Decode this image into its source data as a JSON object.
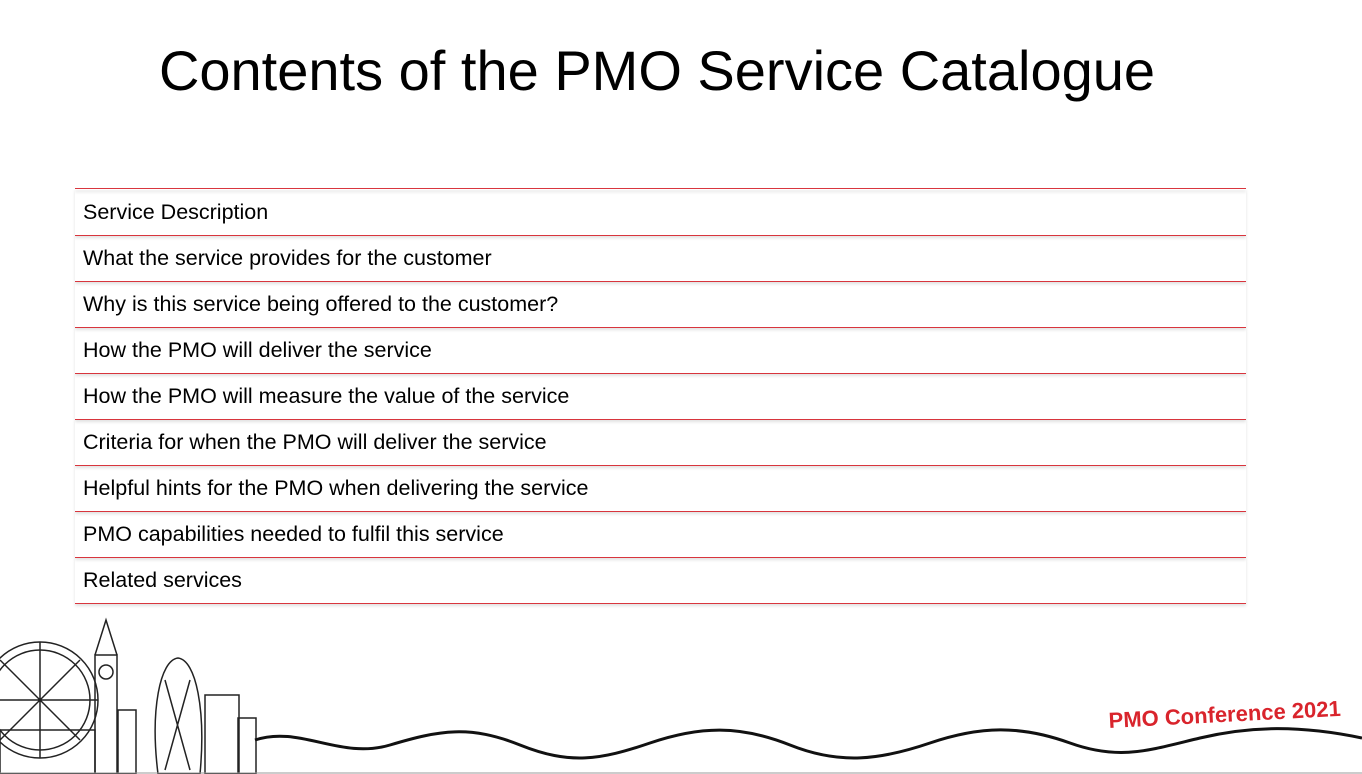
{
  "header": {
    "title": "Contents of the PMO Service Catalogue"
  },
  "items": [
    "Service Description",
    "What the service provides for the customer",
    "Why is this service being offered to the customer?",
    "How the PMO will deliver the service",
    "How the PMO will measure the value of the service",
    "Criteria for when the PMO will deliver the service",
    "Helpful hints for the PMO when delivering the service",
    "PMO capabilities needed to fulfil this service",
    "Related services"
  ],
  "footer": {
    "brand": "PMO Conference 2021"
  }
}
